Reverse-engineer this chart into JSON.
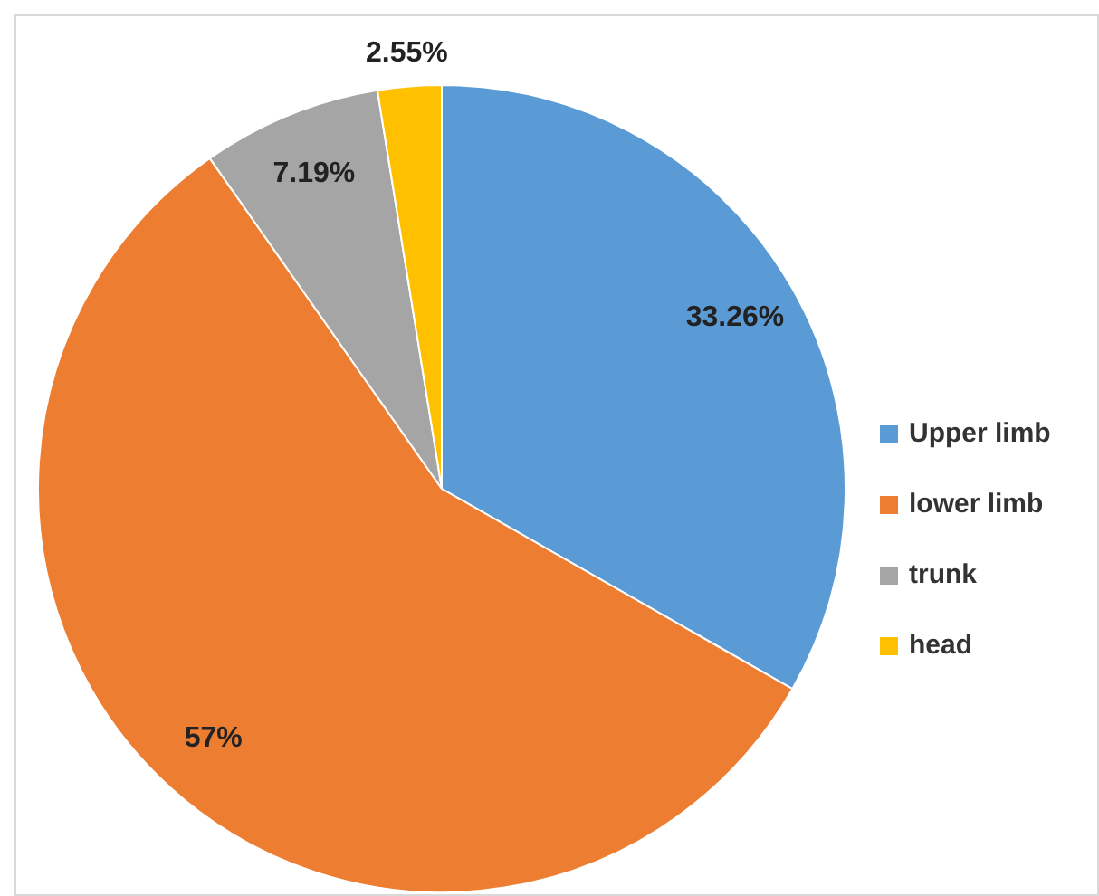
{
  "chart_data": {
    "type": "pie",
    "categories": [
      "Upper limb",
      "lower limb",
      "trunk",
      "head"
    ],
    "values": [
      33.26,
      57,
      7.19,
      2.55
    ],
    "colors": [
      "#5b9bd5",
      "#ed7d31",
      "#a5a5a5",
      "#ffc000"
    ],
    "value_labels": [
      "33.26%",
      "57%",
      "7.19%",
      "2.55%"
    ],
    "legend": "right"
  }
}
